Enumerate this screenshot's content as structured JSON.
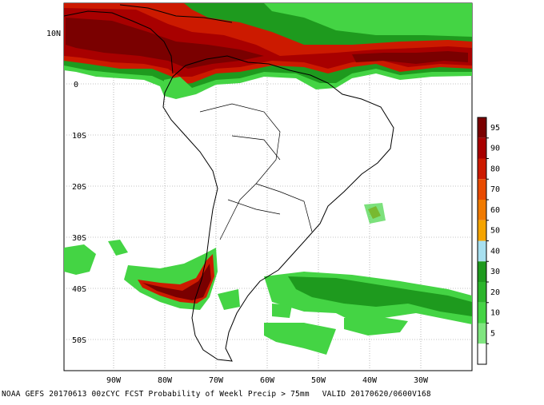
{
  "map": {
    "lat_labels": [
      "10N",
      "0",
      "10S",
      "20S",
      "30S",
      "40S",
      "50S"
    ],
    "lon_labels": [
      "90W",
      "80W",
      "70W",
      "60W",
      "50W",
      "40W",
      "30W"
    ]
  },
  "colorbar": {
    "labels": [
      "95",
      "90",
      "80",
      "70",
      "60",
      "50",
      "40",
      "30",
      "20",
      "10",
      "5"
    ],
    "colors": [
      "#7a0000",
      "#a80000",
      "#cc1a00",
      "#e84a00",
      "#f07a00",
      "#f5a400",
      "#a8e0f0",
      "#1e9a1e",
      "#2bb52b",
      "#44d444",
      "#7fe57f",
      "#ffffff"
    ]
  },
  "footer": {
    "left": "NOAA GEFS 20170613 00zCYC FCST Probability of Weekl Precip > 75mm",
    "right": "VALID 20170620/0600V168"
  }
}
